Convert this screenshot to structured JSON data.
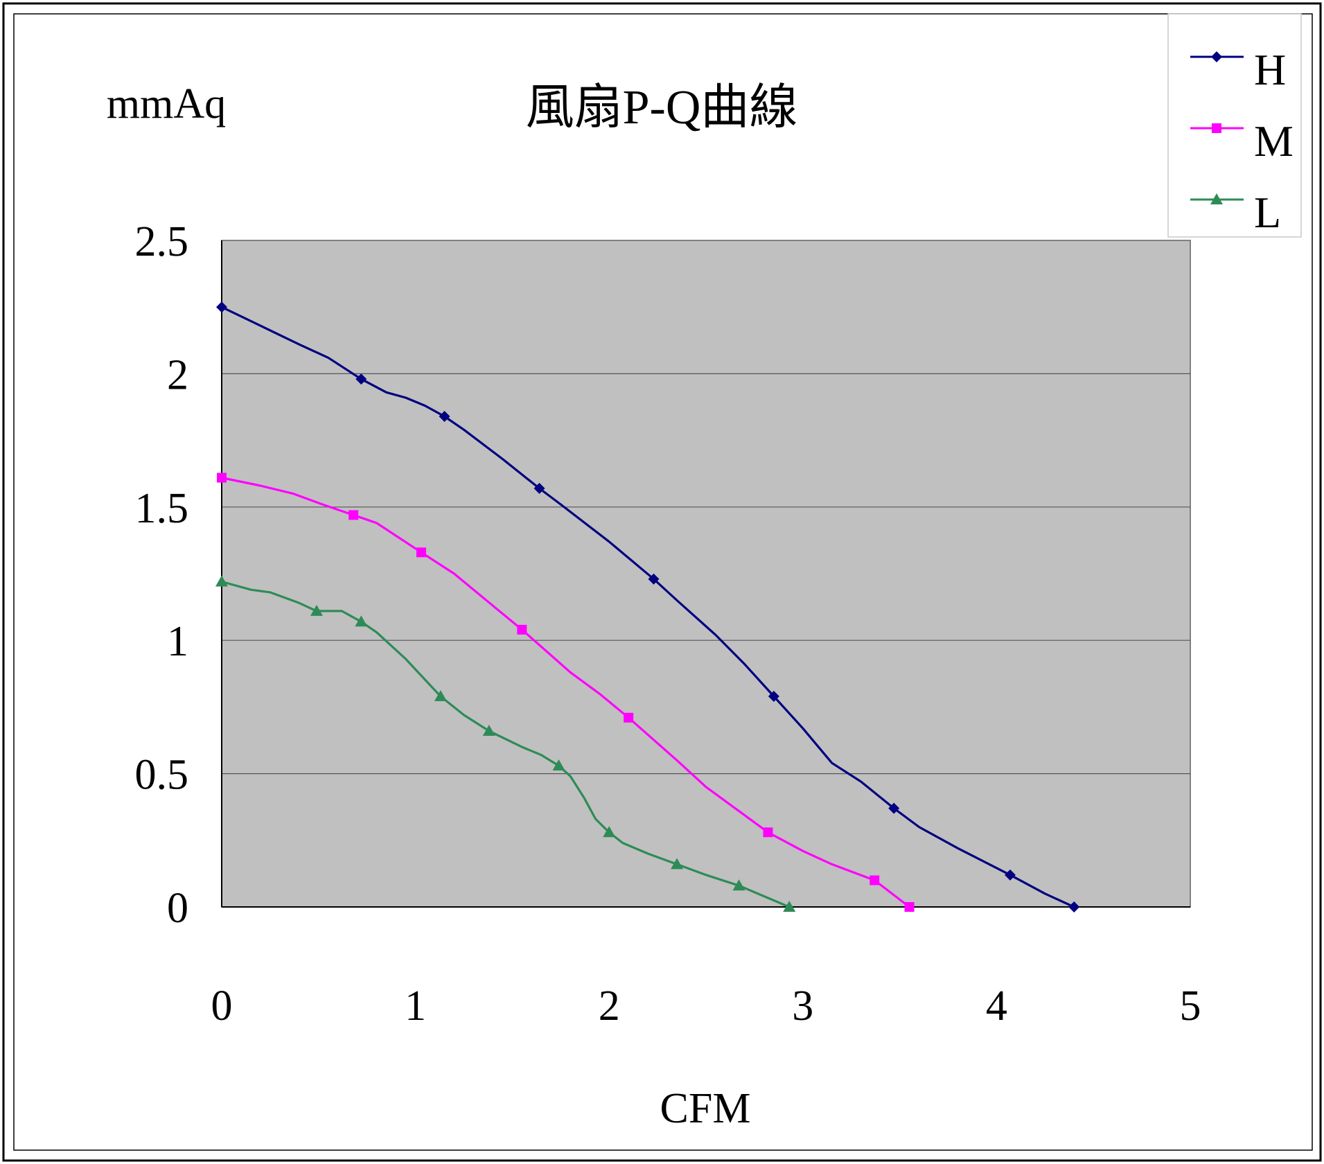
{
  "chart_data": {
    "type": "line",
    "title": "風扇P-Q曲線",
    "xlabel": "CFM",
    "ylabel": "mmAq",
    "xlim": [
      0,
      5
    ],
    "ylim": [
      0,
      2.5
    ],
    "x_ticks": [
      "0",
      "1",
      "2",
      "3",
      "4",
      "5"
    ],
    "y_ticks": [
      "0",
      "0.5",
      "1",
      "1.5",
      "2",
      "2.5"
    ],
    "x_tick_values": [
      0,
      1,
      2,
      3,
      4,
      5
    ],
    "y_tick_values": [
      0,
      0.5,
      1,
      1.5,
      2,
      2.5
    ],
    "grid": "horizontal",
    "legend_position": "top-right",
    "plot_background": "#c0c0c0",
    "series": [
      {
        "name": "H",
        "color": "#000080",
        "marker": "diamond",
        "points": [
          [
            0,
            2.25
          ],
          [
            0.72,
            1.98
          ],
          [
            1.15,
            1.84
          ],
          [
            1.64,
            1.57
          ],
          [
            2.23,
            1.23
          ],
          [
            2.85,
            0.79
          ],
          [
            3.47,
            0.37
          ],
          [
            4.07,
            0.12
          ],
          [
            4.4,
            0.0
          ]
        ],
        "curve": [
          [
            0,
            2.25
          ],
          [
            0.2,
            2.18
          ],
          [
            0.4,
            2.11
          ],
          [
            0.55,
            2.06
          ],
          [
            0.72,
            1.98
          ],
          [
            0.85,
            1.93
          ],
          [
            0.95,
            1.91
          ],
          [
            1.05,
            1.88
          ],
          [
            1.15,
            1.84
          ],
          [
            1.25,
            1.79
          ],
          [
            1.45,
            1.68
          ],
          [
            1.64,
            1.57
          ],
          [
            1.75,
            1.51
          ],
          [
            2.0,
            1.37
          ],
          [
            2.23,
            1.23
          ],
          [
            2.35,
            1.15
          ],
          [
            2.55,
            1.02
          ],
          [
            2.7,
            0.91
          ],
          [
            2.85,
            0.79
          ],
          [
            3.0,
            0.67
          ],
          [
            3.15,
            0.54
          ],
          [
            3.3,
            0.47
          ],
          [
            3.47,
            0.37
          ],
          [
            3.6,
            0.3
          ],
          [
            3.8,
            0.22
          ],
          [
            4.07,
            0.12
          ],
          [
            4.25,
            0.05
          ],
          [
            4.4,
            0.0
          ]
        ]
      },
      {
        "name": "M",
        "color": "#ff00ff",
        "marker": "square",
        "points": [
          [
            0,
            1.61
          ],
          [
            0.68,
            1.47
          ],
          [
            1.03,
            1.33
          ],
          [
            1.55,
            1.04
          ],
          [
            2.1,
            0.71
          ],
          [
            2.82,
            0.28
          ],
          [
            3.37,
            0.1
          ],
          [
            3.55,
            0.0
          ]
        ],
        "curve": [
          [
            0,
            1.61
          ],
          [
            0.2,
            1.58
          ],
          [
            0.37,
            1.55
          ],
          [
            0.52,
            1.51
          ],
          [
            0.68,
            1.47
          ],
          [
            0.8,
            1.44
          ],
          [
            1.03,
            1.33
          ],
          [
            1.2,
            1.25
          ],
          [
            1.4,
            1.13
          ],
          [
            1.55,
            1.04
          ],
          [
            1.8,
            0.88
          ],
          [
            1.95,
            0.8
          ],
          [
            2.1,
            0.71
          ],
          [
            2.35,
            0.55
          ],
          [
            2.5,
            0.45
          ],
          [
            2.82,
            0.28
          ],
          [
            3.0,
            0.21
          ],
          [
            3.15,
            0.16
          ],
          [
            3.37,
            0.1
          ],
          [
            3.55,
            0.0
          ]
        ]
      },
      {
        "name": "L",
        "color": "#2e8b57",
        "marker": "triangle",
        "points": [
          [
            0,
            1.22
          ],
          [
            0.49,
            1.11
          ],
          [
            0.72,
            1.07
          ],
          [
            1.13,
            0.79
          ],
          [
            1.38,
            0.66
          ],
          [
            1.74,
            0.53
          ],
          [
            2.0,
            0.28
          ],
          [
            2.35,
            0.16
          ],
          [
            2.67,
            0.08
          ],
          [
            2.93,
            0.0
          ]
        ],
        "curve": [
          [
            0,
            1.22
          ],
          [
            0.15,
            1.19
          ],
          [
            0.25,
            1.18
          ],
          [
            0.4,
            1.14
          ],
          [
            0.49,
            1.11
          ],
          [
            0.62,
            1.11
          ],
          [
            0.72,
            1.07
          ],
          [
            0.8,
            1.03
          ],
          [
            0.95,
            0.93
          ],
          [
            1.13,
            0.79
          ],
          [
            1.25,
            0.72
          ],
          [
            1.38,
            0.66
          ],
          [
            1.55,
            0.6
          ],
          [
            1.65,
            0.57
          ],
          [
            1.74,
            0.53
          ],
          [
            1.8,
            0.49
          ],
          [
            1.87,
            0.41
          ],
          [
            1.93,
            0.33
          ],
          [
            2.0,
            0.28
          ],
          [
            2.07,
            0.24
          ],
          [
            2.2,
            0.2
          ],
          [
            2.35,
            0.16
          ],
          [
            2.5,
            0.12
          ],
          [
            2.67,
            0.08
          ],
          [
            2.8,
            0.04
          ],
          [
            2.93,
            0.0
          ]
        ]
      }
    ]
  }
}
